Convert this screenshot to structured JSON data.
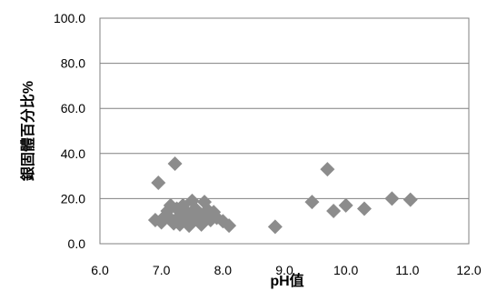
{
  "chart_data": {
    "type": "scatter",
    "xlabel": "pH值",
    "ylabel": "銀固體百分比%",
    "xlim": [
      6.0,
      12.0
    ],
    "ylim": [
      0.0,
      100.0
    ],
    "x_ticks": [
      "6.0",
      "7.0",
      "8.0",
      "9.0",
      "10.0",
      "11.0",
      "12.0"
    ],
    "y_ticks": [
      "0.0",
      "20.0",
      "40.0",
      "60.0",
      "80.0",
      "100.0"
    ],
    "grid": "horizontal",
    "marker": "diamond",
    "marker_color": "#8c8c8c",
    "series": [
      {
        "points": [
          [
            6.9,
            10.5
          ],
          [
            6.95,
            27.0
          ],
          [
            7.0,
            9.5
          ],
          [
            7.05,
            12.0
          ],
          [
            7.1,
            14.5
          ],
          [
            7.15,
            17.0
          ],
          [
            7.15,
            11.0
          ],
          [
            7.2,
            9.0
          ],
          [
            7.22,
            35.5
          ],
          [
            7.25,
            15.5
          ],
          [
            7.3,
            12.5
          ],
          [
            7.3,
            8.5
          ],
          [
            7.35,
            17.0
          ],
          [
            7.4,
            10.5
          ],
          [
            7.42,
            14.0
          ],
          [
            7.45,
            8.0
          ],
          [
            7.5,
            19.0
          ],
          [
            7.5,
            12.0
          ],
          [
            7.55,
            15.5
          ],
          [
            7.6,
            10.0
          ],
          [
            7.62,
            13.5
          ],
          [
            7.65,
            8.5
          ],
          [
            7.7,
            18.5
          ],
          [
            7.72,
            12.5
          ],
          [
            7.75,
            15.0
          ],
          [
            7.8,
            10.5
          ],
          [
            7.85,
            14.0
          ],
          [
            7.9,
            11.5
          ],
          [
            8.0,
            10.0
          ],
          [
            8.1,
            8.0
          ],
          [
            8.85,
            7.5
          ],
          [
            9.45,
            18.5
          ],
          [
            9.7,
            33.0
          ],
          [
            9.8,
            14.5
          ],
          [
            10.0,
            17.0
          ],
          [
            10.3,
            15.5
          ],
          [
            10.75,
            20.0
          ],
          [
            11.05,
            19.5
          ]
        ]
      }
    ]
  }
}
